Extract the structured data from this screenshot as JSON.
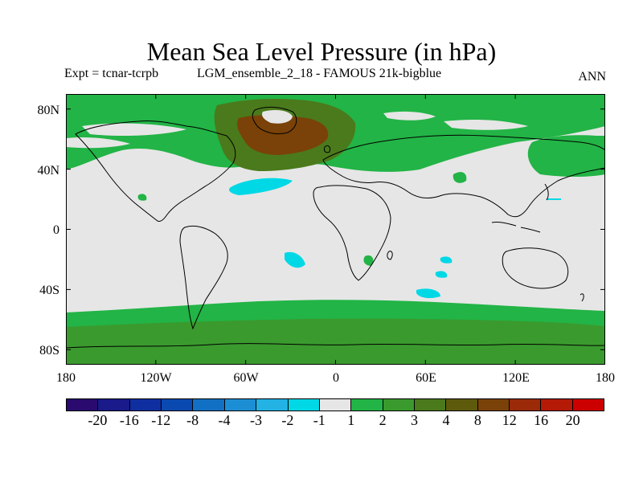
{
  "title": "Mean Sea Level Pressure (in hPa)",
  "subtitle_left": "Expt = tcnar-tcrpb",
  "subtitle_mid": "LGM_ensemble_2_18 - FAMOUS 21k-bigblue",
  "subtitle_right": "ANN",
  "y_ticks": [
    "80N",
    "40N",
    "0",
    "40S",
    "80S"
  ],
  "x_ticks": [
    "180",
    "120W",
    "60W",
    "0",
    "60E",
    "120E",
    "180"
  ],
  "colorbar": {
    "colors": [
      "#2a0a6e",
      "#1a1a8a",
      "#0f2fa0",
      "#0a4ab0",
      "#1270c4",
      "#1c8fd4",
      "#22b2e4",
      "#00d8e6",
      "#e6e6e6",
      "#22b446",
      "#3a9a2e",
      "#4a7a1c",
      "#5e5a0c",
      "#7a4208",
      "#9a2a08",
      "#b41a06",
      "#cc0000"
    ],
    "labels": [
      "-20",
      "-16",
      "-12",
      "-8",
      "-4",
      "-3",
      "-2",
      "-1",
      "1",
      "2",
      "3",
      "4",
      "8",
      "12",
      "16",
      "20"
    ]
  },
  "map_colors": {
    "neutral": "#e6e6e6",
    "green_2": "#22b446",
    "green_3": "#3a9a2e",
    "olive_4": "#4a7a1c",
    "brown_8": "#7a4208",
    "cyan_m2": "#00d8e6"
  }
}
